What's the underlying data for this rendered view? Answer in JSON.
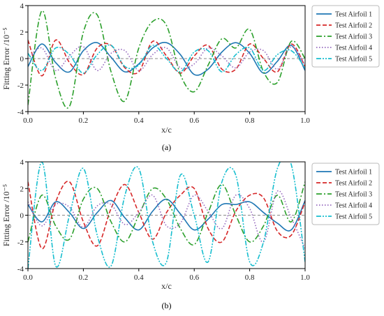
{
  "chart_data": [
    {
      "type": "line",
      "panel_label": "(a)",
      "xlabel": "x/c",
      "ylabel": "Fitting Error /10⁻⁵",
      "xlim": [
        0.0,
        1.0
      ],
      "ylim": [
        -4,
        4
      ],
      "xticks": [
        "0.0",
        "0.2",
        "0.4",
        "0.6",
        "0.8",
        "1.0"
      ],
      "yticks": [
        "-4",
        "-2",
        "0",
        "2",
        "4"
      ],
      "grid": false,
      "legend_position": "upper-right-outside",
      "x": [
        0.0,
        0.05,
        0.1,
        0.15,
        0.2,
        0.25,
        0.3,
        0.35,
        0.4,
        0.45,
        0.5,
        0.55,
        0.6,
        0.65,
        0.7,
        0.75,
        0.8,
        0.85,
        0.9,
        0.95,
        1.0
      ],
      "series": [
        {
          "name": "Test Airfoil 1",
          "color": "#1f77b4",
          "dash": "solid",
          "values": [
            -0.6,
            1.1,
            -0.3,
            -1.0,
            0.6,
            1.2,
            0.1,
            -1.0,
            -0.4,
            0.8,
            1.2,
            0.3,
            -1.2,
            -0.8,
            0.5,
            1.2,
            0.4,
            -1.1,
            -0.2,
            1.0,
            -0.9
          ]
        },
        {
          "name": "Test Airfoil 2",
          "color": "#d62728",
          "dash": "dashed",
          "values": [
            1.4,
            -1.3,
            1.4,
            -0.3,
            -1.2,
            0.8,
            1.0,
            -0.7,
            -1.0,
            1.3,
            0.2,
            -1.1,
            0.2,
            1.0,
            -0.8,
            -0.8,
            1.1,
            0.0,
            -1.0,
            1.1,
            -0.6
          ]
        },
        {
          "name": "Test Airfoil 3",
          "color": "#2ca02c",
          "dash": "dashdot",
          "values": [
            -3.5,
            3.6,
            -1.5,
            -3.6,
            2.0,
            3.3,
            -1.0,
            -3.2,
            0.8,
            2.8,
            2.5,
            -1.2,
            -2.5,
            -0.5,
            1.5,
            0.8,
            2.2,
            -1.0,
            -1.8,
            1.3,
            0.0
          ]
        },
        {
          "name": "Test Airfoil 4",
          "color": "#9467bd",
          "dash": "dotted",
          "values": [
            0.0,
            0.8,
            -0.9,
            0.2,
            0.9,
            -0.9,
            0.4,
            0.6,
            -0.9,
            0.3,
            0.8,
            -0.7,
            -0.4,
            0.8,
            0.2,
            -0.7,
            0.5,
            0.6,
            -0.8,
            0.9,
            -0.5
          ]
        },
        {
          "name": "Test Airfoil 5",
          "color": "#17becf",
          "dash": "dashdotdot",
          "values": [
            0.4,
            -0.9,
            0.8,
            0.3,
            -1.1,
            0.3,
            1.0,
            -0.6,
            -0.5,
            1.0,
            0.0,
            -1.0,
            0.5,
            0.6,
            -1.0,
            0.3,
            0.8,
            -0.9,
            0.3,
            0.6,
            -0.7
          ]
        }
      ]
    },
    {
      "type": "line",
      "panel_label": "(b)",
      "xlabel": "x/c",
      "ylabel": "Fitting Error /10⁻⁵",
      "xlim": [
        0.0,
        1.0
      ],
      "ylim": [
        -4,
        4
      ],
      "xticks": [
        "0.0",
        "0.2",
        "0.4",
        "0.6",
        "0.8",
        "1.0"
      ],
      "yticks": [
        "-4",
        "-2",
        "0",
        "2",
        "4"
      ],
      "grid": false,
      "legend_position": "upper-right-outside",
      "x": [
        0.0,
        0.05,
        0.1,
        0.15,
        0.2,
        0.25,
        0.3,
        0.35,
        0.4,
        0.45,
        0.5,
        0.55,
        0.6,
        0.65,
        0.7,
        0.75,
        0.8,
        0.85,
        0.9,
        0.95,
        1.0
      ],
      "series": [
        {
          "name": "Test Airfoil 1",
          "color": "#1f77b4",
          "dash": "solid",
          "values": [
            0.8,
            -0.5,
            1.0,
            0.2,
            -1.0,
            0.2,
            1.1,
            -0.2,
            -1.1,
            0.3,
            1.2,
            0.1,
            -1.1,
            -0.3,
            0.8,
            0.8,
            1.0,
            0.2,
            -0.6,
            -1.1,
            1.1
          ]
        },
        {
          "name": "Test Airfoil 2",
          "color": "#d62728",
          "dash": "dashed",
          "values": [
            2.5,
            -2.5,
            1.0,
            2.5,
            -0.5,
            -2.3,
            0.5,
            2.3,
            0.2,
            -1.8,
            0.2,
            1.5,
            2.0,
            -1.0,
            -2.0,
            0.3,
            1.5,
            1.3,
            -1.2,
            -1.5,
            1.0
          ]
        },
        {
          "name": "Test Airfoil 3",
          "color": "#2ca02c",
          "dash": "dashdot",
          "values": [
            -2.0,
            1.5,
            -0.8,
            -1.8,
            1.2,
            2.0,
            -0.5,
            -2.0,
            0.0,
            2.0,
            1.2,
            -1.0,
            -2.2,
            0.2,
            2.3,
            0.0,
            -2.0,
            -0.8,
            1.5,
            -0.5,
            2.5
          ]
        },
        {
          "name": "Test Airfoil 4",
          "color": "#9467bd",
          "dash": "dotted",
          "values": [
            1.0,
            -0.8,
            0.8,
            0.6,
            -0.9,
            0.7,
            0.8,
            -0.7,
            0.2,
            1.5,
            -0.8,
            -0.6,
            1.5,
            0.3,
            -1.0,
            1.5,
            0.5,
            -2.0,
            1.8,
            -0.2,
            -2.5
          ]
        },
        {
          "name": "Test Airfoil 5",
          "color": "#17becf",
          "dash": "dashdotdot",
          "values": [
            -4.0,
            4.0,
            -3.8,
            0.0,
            3.5,
            -1.5,
            -3.8,
            1.5,
            3.5,
            -2.0,
            -3.5,
            3.0,
            0.0,
            -3.5,
            2.5,
            3.0,
            -3.5,
            -2.0,
            3.5,
            3.8,
            -3.5
          ]
        }
      ]
    }
  ]
}
